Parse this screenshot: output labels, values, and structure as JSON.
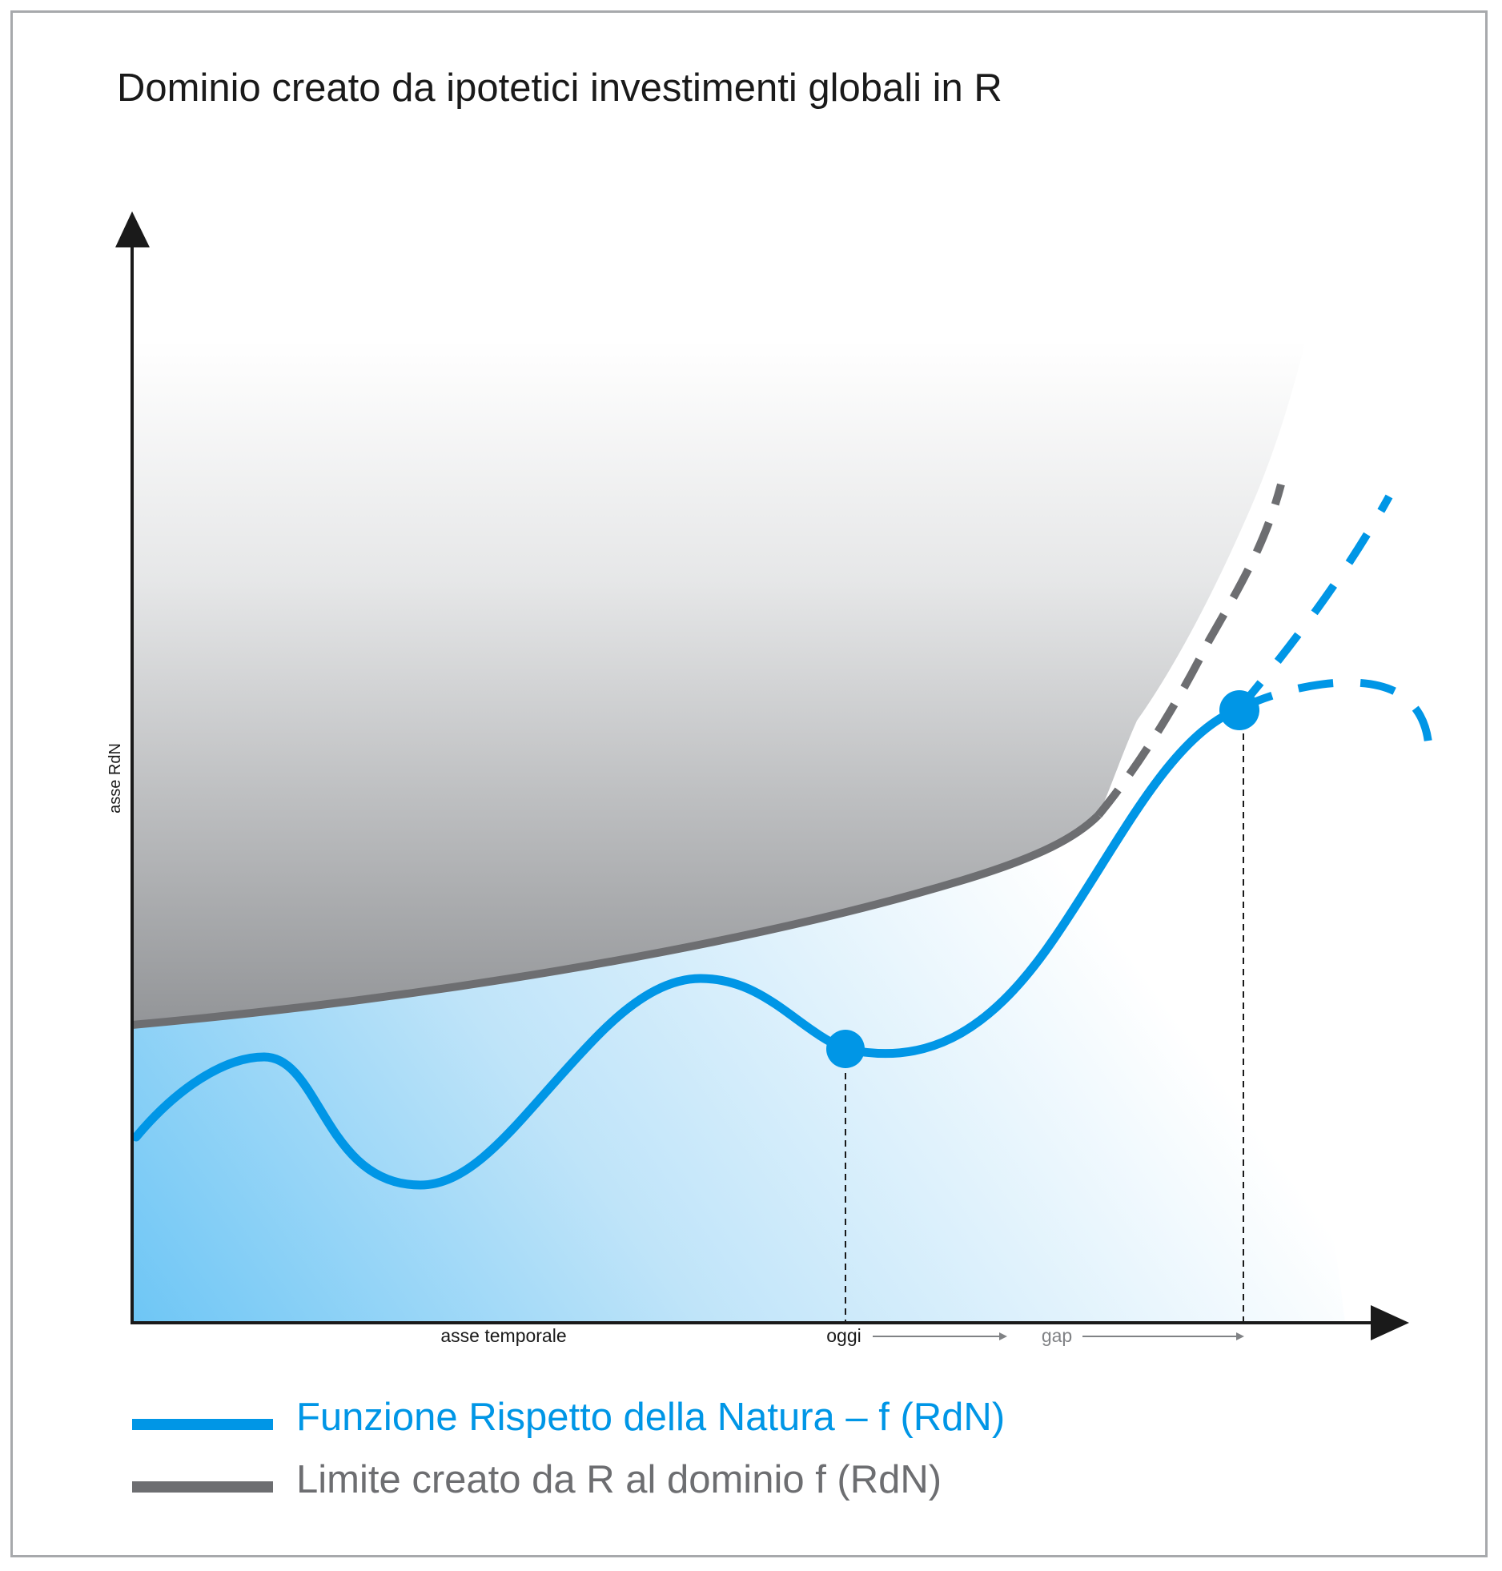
{
  "title": "Dominio creato da ipotetici investimenti globali in R",
  "colors": {
    "rdn": "#0096e6",
    "limit": "#6d6e71",
    "axis": "#1a1a1a",
    "gap_text": "#808285"
  },
  "chart_data": {
    "type": "line",
    "ylabel": "asse RdN",
    "xlabel": "asse temporale",
    "x_markers": [
      {
        "label": "oggi"
      },
      {
        "label": "gap"
      }
    ],
    "series": [
      {
        "name": "Funzione Rispetto della Natura – f (RdN)",
        "style": "solid",
        "projection": "three dashed future branches"
      },
      {
        "name": "Limite creato da R al dominio f (RdN)",
        "style": "solid",
        "projection": "dashed continuation"
      }
    ],
    "grid": false,
    "legend": "bottom"
  },
  "legend": [
    {
      "label": "Funzione Rispetto della Natura – f (RdN)"
    },
    {
      "label": "Limite creato da R al dominio f (RdN)"
    }
  ]
}
